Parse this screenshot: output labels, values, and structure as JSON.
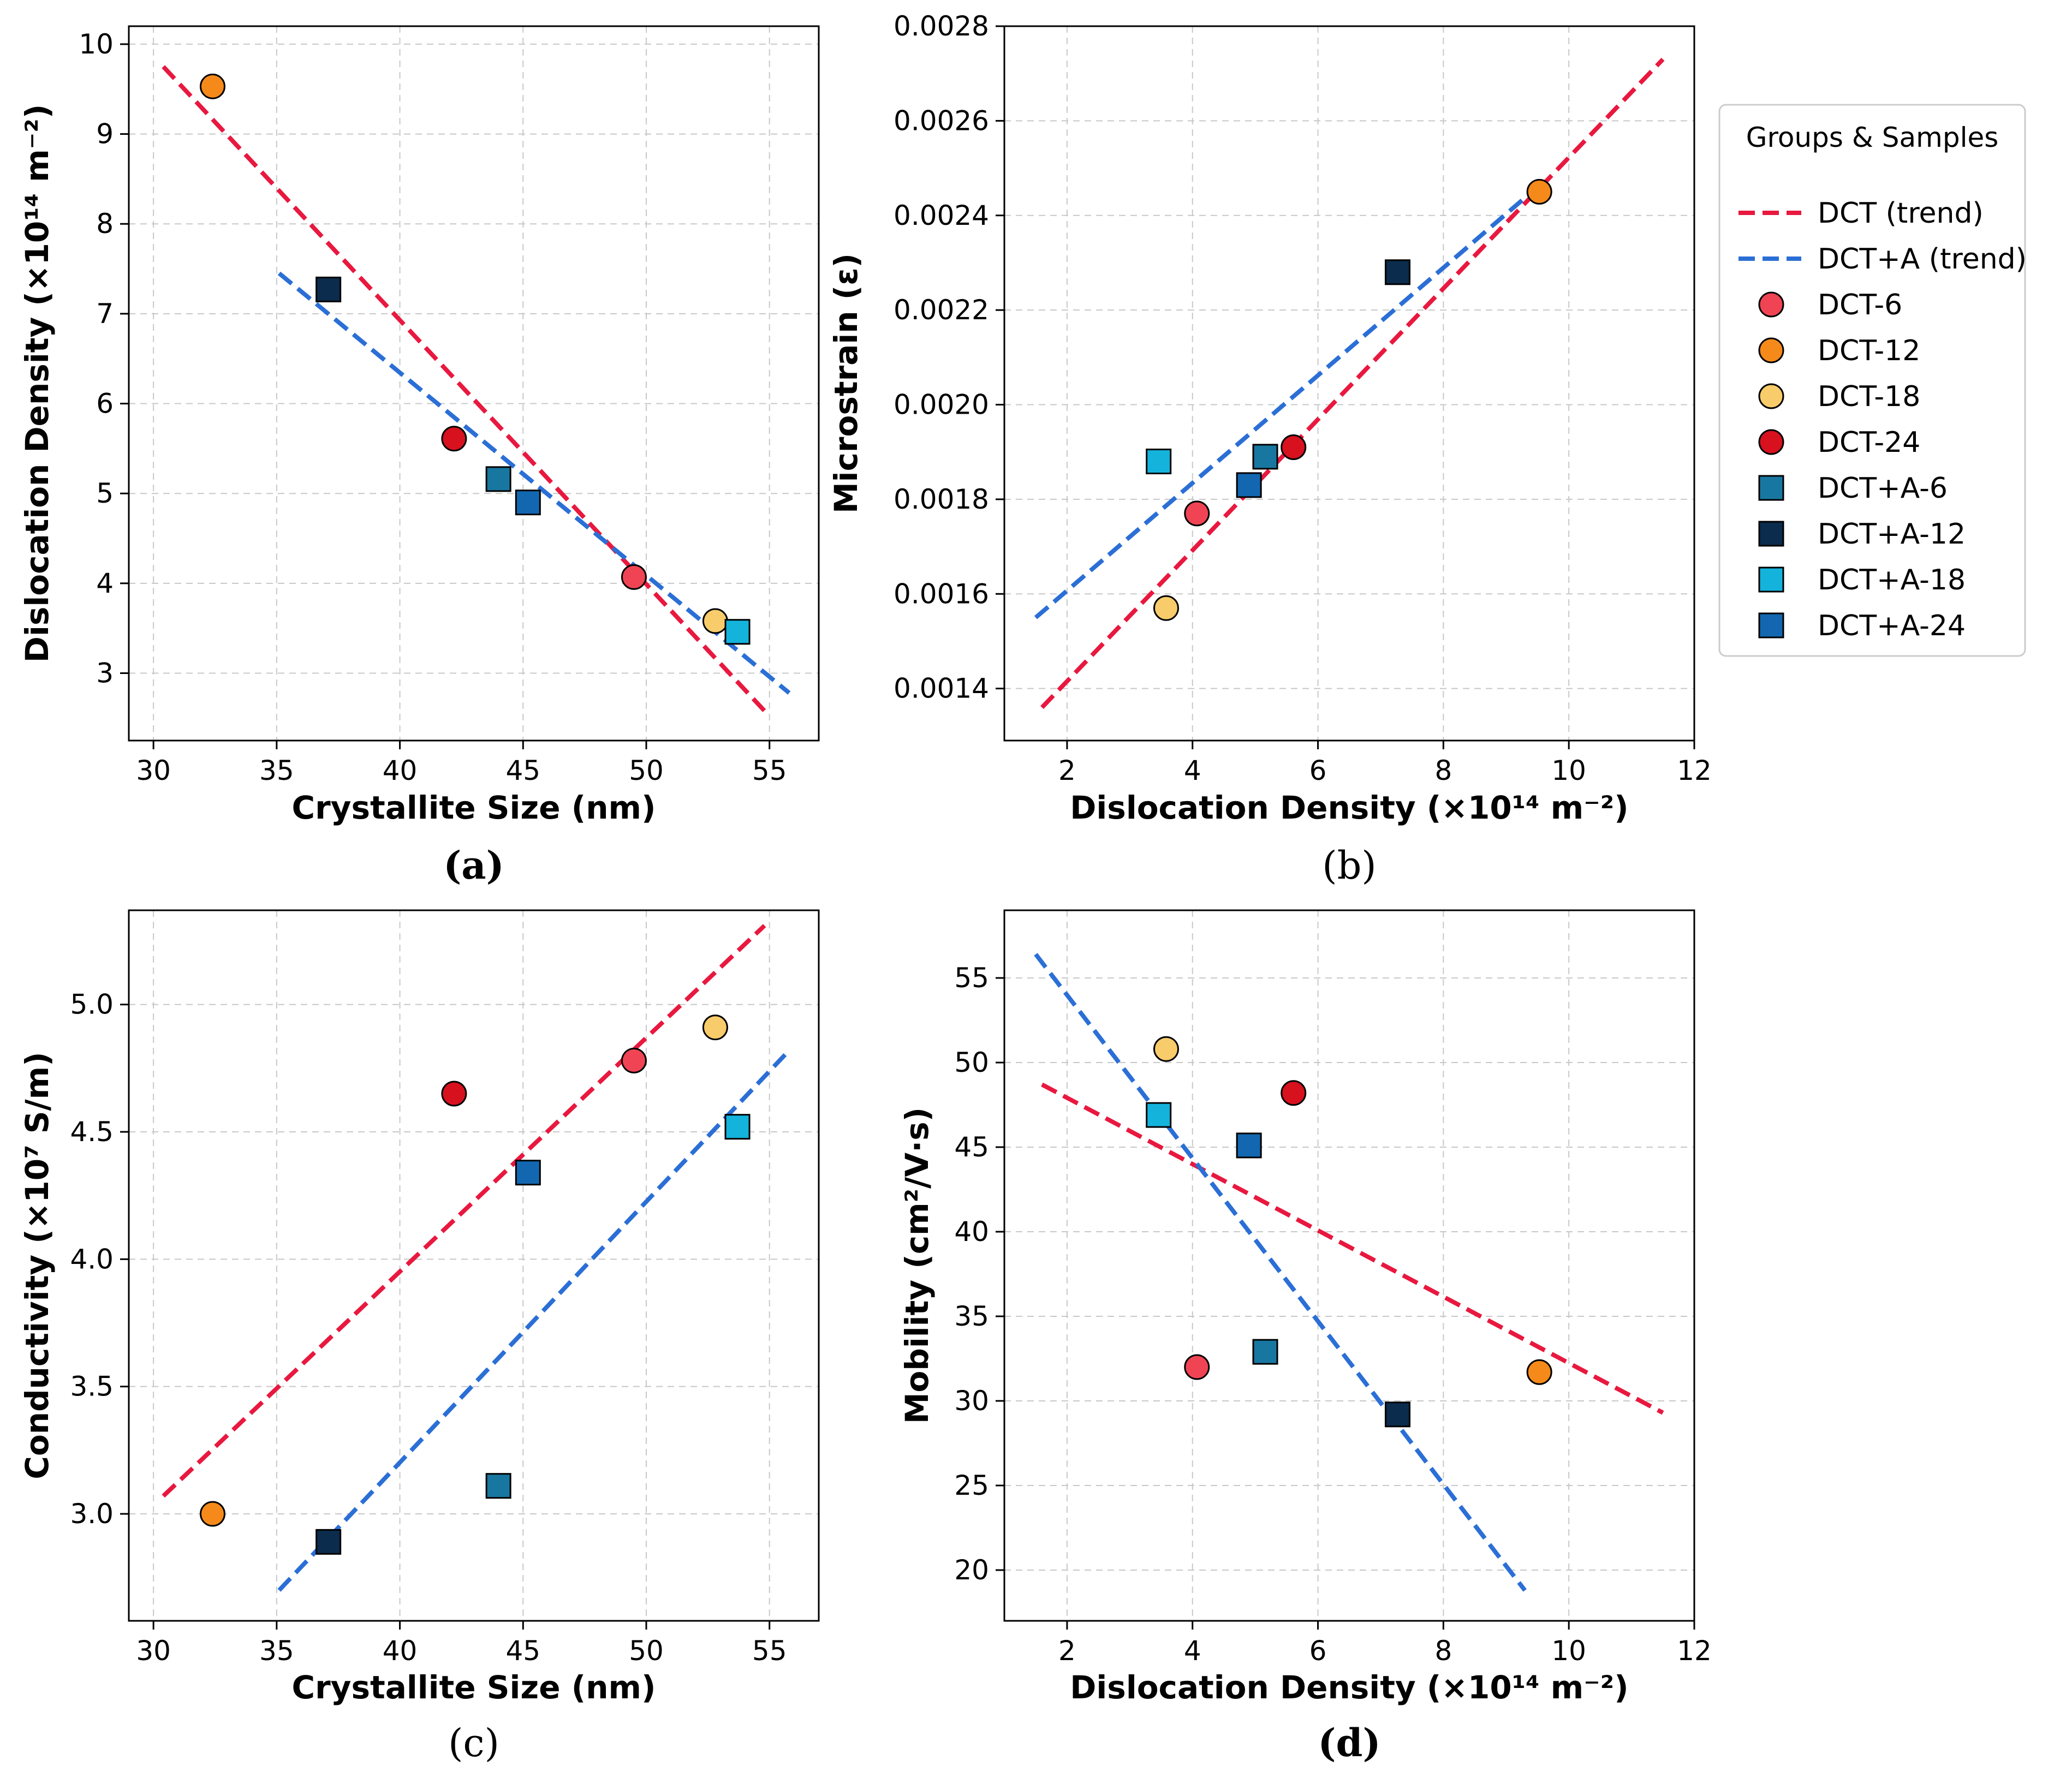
{
  "groups": {
    "DCT": {
      "trend_label": "DCT (trend)",
      "color": "#e8183f"
    },
    "DCT+A": {
      "trend_label": "DCT+A (trend)",
      "color": "#2b6fd6"
    }
  },
  "samples": [
    {
      "name": "DCT-6",
      "group": "DCT",
      "marker": "circle",
      "color": "#f04454"
    },
    {
      "name": "DCT-12",
      "group": "DCT",
      "marker": "circle",
      "color": "#f58a1a"
    },
    {
      "name": "DCT-18",
      "group": "DCT",
      "marker": "circle",
      "color": "#f8cc6a"
    },
    {
      "name": "DCT-24",
      "group": "DCT",
      "marker": "circle",
      "color": "#d8111f"
    },
    {
      "name": "DCT+A-6",
      "group": "DCT+A",
      "marker": "square",
      "color": "#1877a0"
    },
    {
      "name": "DCT+A-12",
      "group": "DCT+A",
      "marker": "square",
      "color": "#0b2c4c"
    },
    {
      "name": "DCT+A-18",
      "group": "DCT+A",
      "marker": "square",
      "color": "#14b3dc"
    },
    {
      "name": "DCT+A-24",
      "group": "DCT+A",
      "marker": "square",
      "color": "#1267b0"
    }
  ],
  "legend": {
    "title": "Groups & Samples",
    "placement": "right of panel (b)"
  },
  "chart_data": [
    {
      "type": "scatter",
      "panel_label": "(a)",
      "panel_label_bold": true,
      "xlabel": "Crystallite Size (nm)",
      "ylabel": "Dislocation Density (×10¹⁴ m⁻²)",
      "xlim": [
        29,
        57
      ],
      "ylim": [
        2.25,
        10.2
      ],
      "xticks": [
        30,
        35,
        40,
        45,
        50,
        55
      ],
      "xtick_labels": [
        "30",
        "35",
        "40",
        "45",
        "50",
        "55"
      ],
      "yticks": [
        3,
        4,
        5,
        6,
        7,
        8,
        9,
        10
      ],
      "ytick_labels": [
        "3",
        "4",
        "5",
        "6",
        "7",
        "8",
        "9",
        "10"
      ],
      "points": [
        {
          "sample": "DCT-6",
          "x": 49.5,
          "y": 4.07
        },
        {
          "sample": "DCT-12",
          "x": 32.4,
          "y": 9.53
        },
        {
          "sample": "DCT-18",
          "x": 52.8,
          "y": 3.58
        },
        {
          "sample": "DCT-24",
          "x": 42.2,
          "y": 5.61
        },
        {
          "sample": "DCT+A-6",
          "x": 44.0,
          "y": 5.16
        },
        {
          "sample": "DCT+A-12",
          "x": 37.1,
          "y": 7.27
        },
        {
          "sample": "DCT+A-18",
          "x": 53.7,
          "y": 3.46
        },
        {
          "sample": "DCT+A-24",
          "x": 45.2,
          "y": 4.9
        }
      ],
      "trends": [
        {
          "group": "DCT",
          "x": [
            30.4,
            54.8
          ],
          "y": [
            9.75,
            2.58
          ]
        },
        {
          "group": "DCT+A",
          "x": [
            35.1,
            55.8
          ],
          "y": [
            7.45,
            2.78
          ]
        }
      ]
    },
    {
      "type": "scatter",
      "panel_label": "(b)",
      "panel_label_bold": false,
      "xlabel": "Dislocation Density (×10¹⁴ m⁻²)",
      "ylabel": "Microstrain (ε)",
      "xlim": [
        1.0,
        12.0
      ],
      "ylim": [
        0.00129,
        0.0028
      ],
      "xticks": [
        2,
        4,
        6,
        8,
        10,
        12
      ],
      "xtick_labels": [
        "2",
        "4",
        "6",
        "8",
        "10",
        "12"
      ],
      "yticks": [
        0.0014,
        0.0016,
        0.0018,
        0.002,
        0.0022,
        0.0024,
        0.0026,
        0.0028
      ],
      "ytick_labels": [
        "0.0014",
        "0.0016",
        "0.0018",
        "0.0020",
        "0.0022",
        "0.0024",
        "0.0026",
        "0.0028"
      ],
      "points": [
        {
          "sample": "DCT-6",
          "x": 4.07,
          "y": 0.00177
        },
        {
          "sample": "DCT-12",
          "x": 9.53,
          "y": 0.00245
        },
        {
          "sample": "DCT-18",
          "x": 3.58,
          "y": 0.00157
        },
        {
          "sample": "DCT-24",
          "x": 5.61,
          "y": 0.00191
        },
        {
          "sample": "DCT+A-6",
          "x": 5.16,
          "y": 0.00189
        },
        {
          "sample": "DCT+A-12",
          "x": 7.27,
          "y": 0.00228
        },
        {
          "sample": "DCT+A-18",
          "x": 3.46,
          "y": 0.00188
        },
        {
          "sample": "DCT+A-24",
          "x": 4.9,
          "y": 0.00183
        }
      ],
      "trends": [
        {
          "group": "DCT",
          "x": [
            1.6,
            11.5
          ],
          "y": [
            0.00136,
            0.00273
          ]
        },
        {
          "group": "DCT+A",
          "x": [
            1.5,
            9.5
          ],
          "y": [
            0.00155,
            0.00246
          ]
        }
      ]
    },
    {
      "type": "scatter",
      "panel_label": "(c)",
      "panel_label_bold": false,
      "xlabel": "Crystallite Size (nm)",
      "ylabel": "Conductivity (×10⁷ S/m)",
      "xlim": [
        29,
        57
      ],
      "ylim": [
        2.58,
        5.37
      ],
      "xticks": [
        30,
        35,
        40,
        45,
        50,
        55
      ],
      "xtick_labels": [
        "30",
        "35",
        "40",
        "45",
        "50",
        "55"
      ],
      "yticks": [
        3.0,
        3.5,
        4.0,
        4.5,
        5.0
      ],
      "ytick_labels": [
        "3.0",
        "3.5",
        "4.0",
        "4.5",
        "5.0"
      ],
      "points": [
        {
          "sample": "DCT-6",
          "x": 49.5,
          "y": 4.78
        },
        {
          "sample": "DCT-12",
          "x": 32.4,
          "y": 3.0
        },
        {
          "sample": "DCT-18",
          "x": 52.8,
          "y": 4.91
        },
        {
          "sample": "DCT-24",
          "x": 42.2,
          "y": 4.65
        },
        {
          "sample": "DCT+A-6",
          "x": 44.0,
          "y": 3.11
        },
        {
          "sample": "DCT+A-12",
          "x": 37.1,
          "y": 2.89
        },
        {
          "sample": "DCT+A-18",
          "x": 53.7,
          "y": 4.52
        },
        {
          "sample": "DCT+A-24",
          "x": 45.2,
          "y": 4.34
        }
      ],
      "trends": [
        {
          "group": "DCT",
          "x": [
            30.4,
            54.8
          ],
          "y": [
            3.07,
            5.31
          ]
        },
        {
          "group": "DCT+A",
          "x": [
            35.1,
            55.8
          ],
          "y": [
            2.7,
            4.82
          ]
        }
      ]
    },
    {
      "type": "scatter",
      "panel_label": "(d)",
      "panel_label_bold": true,
      "xlabel": "Dislocation Density (×10¹⁴ m⁻²)",
      "ylabel": "Mobility (cm²/V·s)",
      "xlim": [
        1.0,
        12.0
      ],
      "ylim": [
        17.0,
        59.0
      ],
      "xticks": [
        2,
        4,
        6,
        8,
        10,
        12
      ],
      "xtick_labels": [
        "2",
        "4",
        "6",
        "8",
        "10",
        "12"
      ],
      "yticks": [
        20,
        25,
        30,
        35,
        40,
        45,
        50,
        55
      ],
      "ytick_labels": [
        "20",
        "25",
        "30",
        "35",
        "40",
        "45",
        "50",
        "55"
      ],
      "points": [
        {
          "sample": "DCT-6",
          "x": 4.07,
          "y": 32.0
        },
        {
          "sample": "DCT-12",
          "x": 9.53,
          "y": 31.7
        },
        {
          "sample": "DCT-18",
          "x": 3.58,
          "y": 50.8
        },
        {
          "sample": "DCT-24",
          "x": 5.61,
          "y": 48.2
        },
        {
          "sample": "DCT+A-6",
          "x": 5.16,
          "y": 32.9
        },
        {
          "sample": "DCT+A-12",
          "x": 7.27,
          "y": 29.2
        },
        {
          "sample": "DCT+A-18",
          "x": 3.46,
          "y": 46.9
        },
        {
          "sample": "DCT+A-24",
          "x": 4.9,
          "y": 45.1
        }
      ],
      "trends": [
        {
          "group": "DCT",
          "x": [
            1.6,
            11.5
          ],
          "y": [
            48.7,
            29.3
          ]
        },
        {
          "group": "DCT+A",
          "x": [
            1.5,
            9.3
          ],
          "y": [
            56.4,
            18.8
          ]
        }
      ]
    }
  ]
}
